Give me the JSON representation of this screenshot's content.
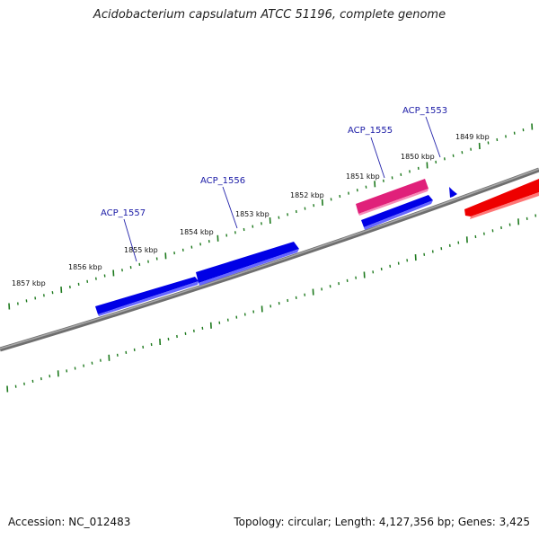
{
  "title": "Acidobacterium capsulatum ATCC 51196, complete genome",
  "footer": {
    "accession": "Accession: NC_012483",
    "summary": "Topology: circular; Length: 4,127,356 bp; Genes: 3,425"
  },
  "colors": {
    "backbone": "#808080",
    "tick": "#1e7a1e",
    "gene_forward": "#0000e6",
    "gene_highlight": "#e0207a",
    "gene_reverse": "#ee0000",
    "label_line": "#2222aa"
  },
  "kbp_labels": [
    "1857 kbp",
    "1856 kbp",
    "1855 kbp",
    "1854 kbp",
    "1853 kbp",
    "1852 kbp",
    "1851 kbp",
    "1850 kbp",
    "1849 kbp"
  ],
  "gene_labels": [
    "ACP_1557",
    "ACP_1556",
    "ACP_1555",
    "ACP_1553"
  ],
  "genes": [
    {
      "name": "gene-1557",
      "color": "gene_forward"
    },
    {
      "name": "gene-1556",
      "color": "gene_forward"
    },
    {
      "name": "gene-1555",
      "color": "gene_highlight"
    },
    {
      "name": "gene-1554",
      "color": "gene_forward"
    },
    {
      "name": "gene-1553",
      "color": "gene_forward"
    },
    {
      "name": "gene-1552",
      "color": "gene_reverse"
    }
  ]
}
